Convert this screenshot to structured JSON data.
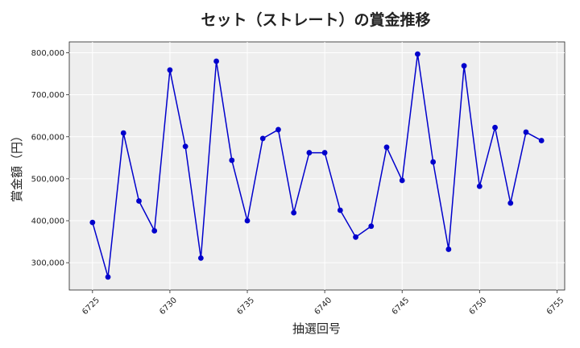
{
  "chart_data": {
    "type": "line",
    "title": "セット（ストレート）の賞金推移",
    "xlabel": "抽選回号",
    "ylabel": "賞金額（円）",
    "x": [
      6725,
      6726,
      6727,
      6728,
      6729,
      6730,
      6731,
      6732,
      6733,
      6734,
      6735,
      6736,
      6737,
      6738,
      6739,
      6740,
      6741,
      6742,
      6743,
      6744,
      6745,
      6746,
      6747,
      6748,
      6749,
      6750,
      6751,
      6752,
      6753,
      6754
    ],
    "series": [
      {
        "values": [
          396000,
          266000,
          609000,
          447000,
          376000,
          759000,
          577000,
          311000,
          780000,
          544000,
          400000,
          596000,
          617000,
          419000,
          562000,
          562000,
          425000,
          361000,
          387000,
          575000,
          496000,
          797000,
          540000,
          332000,
          769000,
          482000,
          622000,
          442000,
          611000,
          591000
        ],
        "color": "#0000cc"
      }
    ],
    "xlim": [
      6723.5,
      6755.5
    ],
    "ylim": [
      235000,
      826000
    ],
    "xticks": [
      "6725",
      "6730",
      "6735",
      "6740",
      "6745",
      "6750",
      "6755"
    ],
    "yticks": [
      "300,000",
      "400,000",
      "500,000",
      "600,000",
      "700,000",
      "800,000"
    ],
    "grid": true,
    "background": "#eeeeee"
  }
}
